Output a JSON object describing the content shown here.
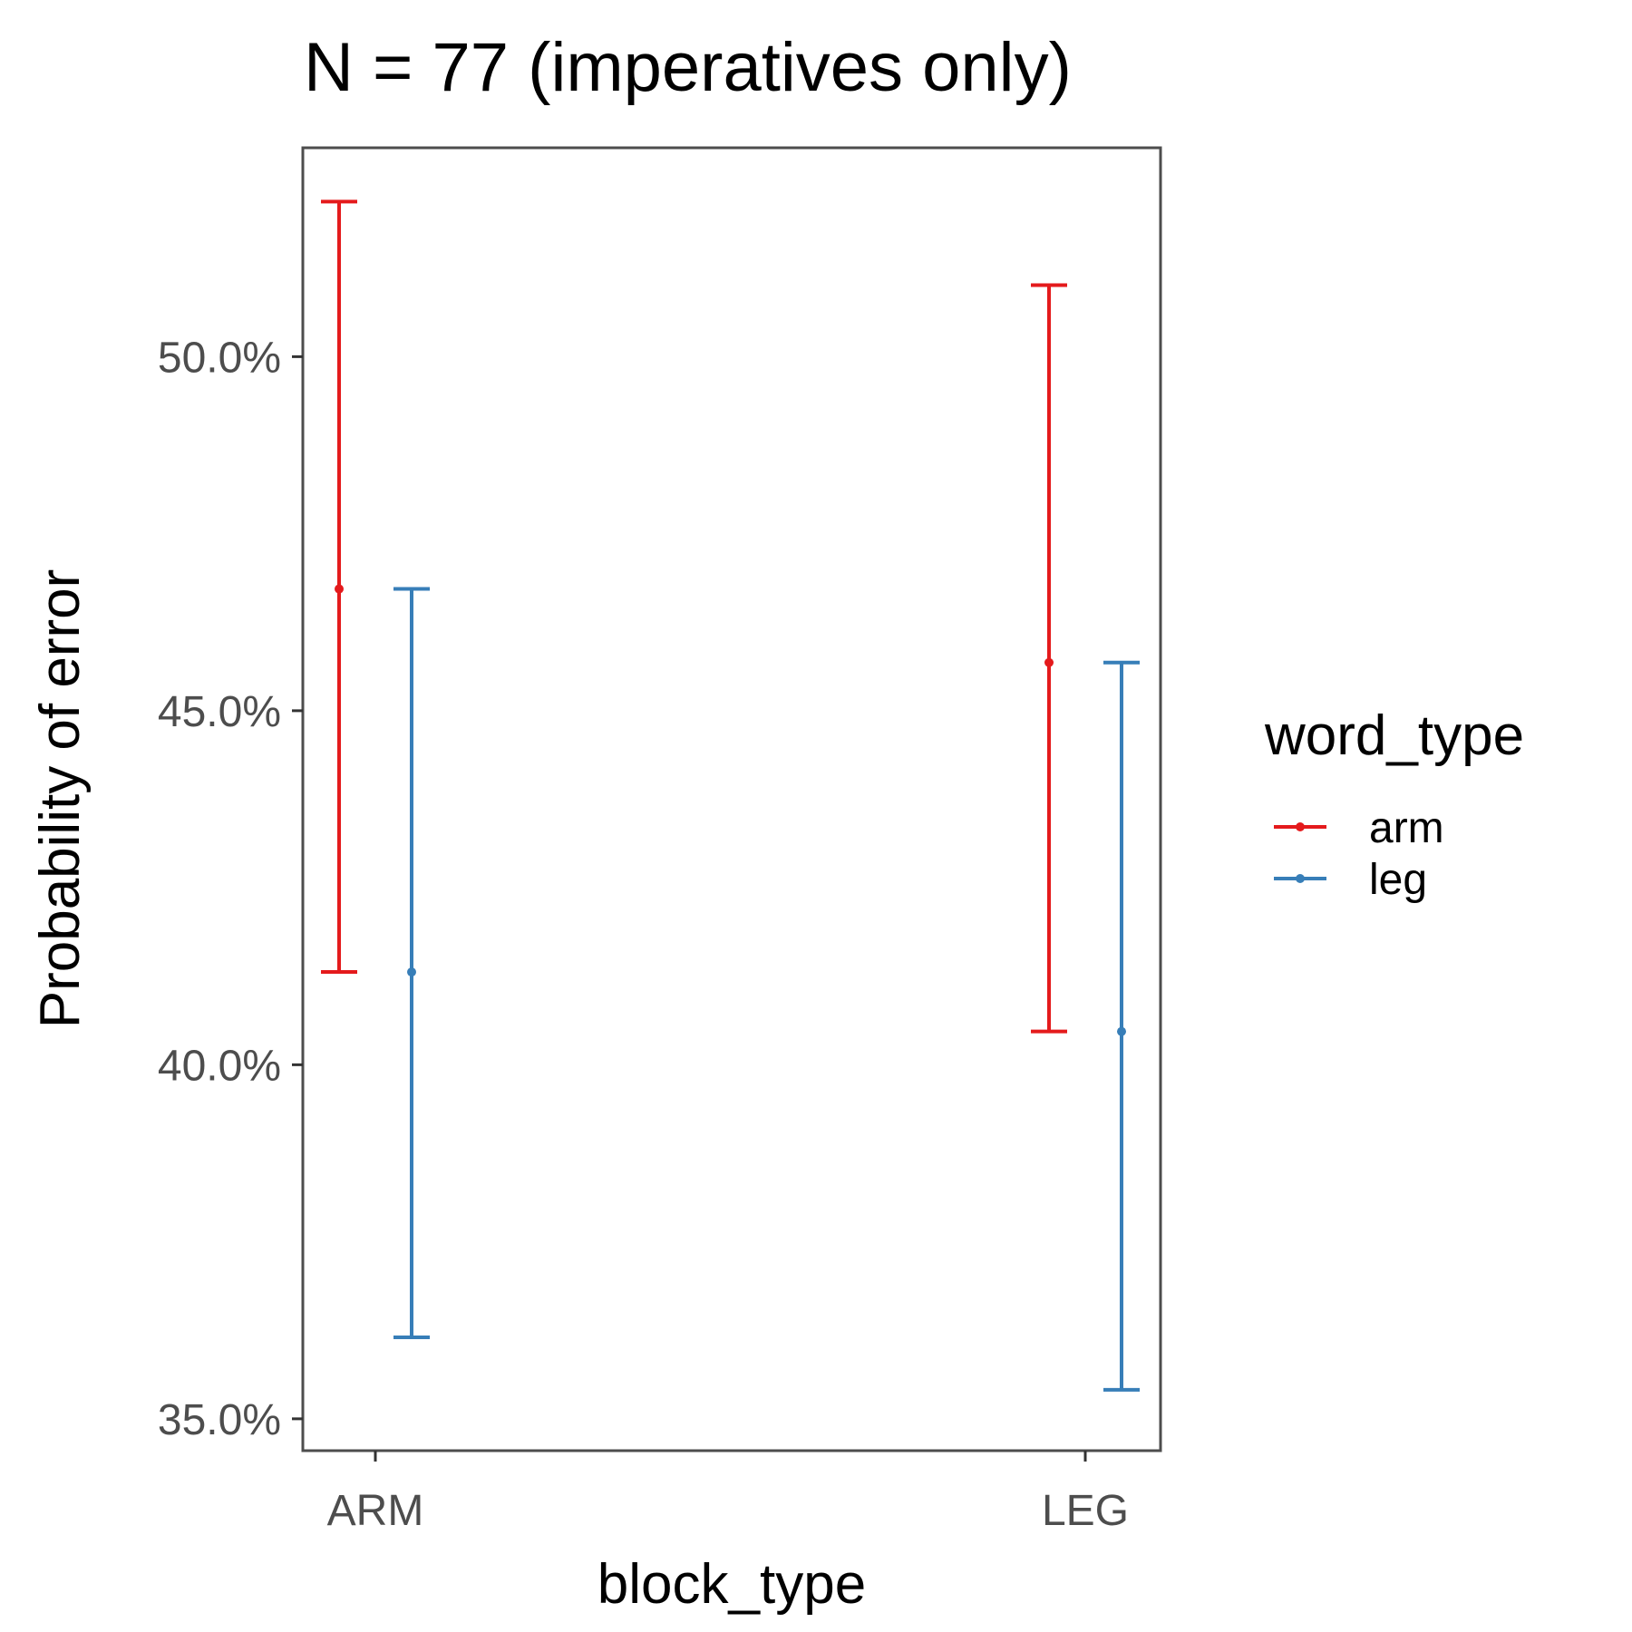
{
  "chart_data": {
    "type": "errorbar",
    "title": "N = 77 (imperatives only)",
    "xlabel": "block_type",
    "ylabel": "Probability of error",
    "categories": [
      "ARM",
      "LEG"
    ],
    "y_ticks": [
      0.35,
      0.4,
      0.45,
      0.5
    ],
    "y_tick_labels": [
      "35.0%",
      "40.0%",
      "45.0%",
      "50.0%"
    ],
    "ylim": [
      0.3455,
      0.5295
    ],
    "grid": false,
    "legend": {
      "title": "word_type",
      "position": "right"
    },
    "series": [
      {
        "name": "arm",
        "color": "#e41a1c",
        "points": [
          {
            "category": "ARM",
            "y": 0.4672,
            "lower": 0.4131,
            "upper": 0.5219
          },
          {
            "category": "LEG",
            "y": 0.4568,
            "lower": 0.4047,
            "upper": 0.5101
          }
        ]
      },
      {
        "name": "leg",
        "color": "#377eb8",
        "points": [
          {
            "category": "ARM",
            "y": 0.4131,
            "lower": 0.3615,
            "upper": 0.4672
          },
          {
            "category": "LEG",
            "y": 0.4047,
            "lower": 0.3541,
            "upper": 0.4568
          }
        ]
      }
    ]
  }
}
